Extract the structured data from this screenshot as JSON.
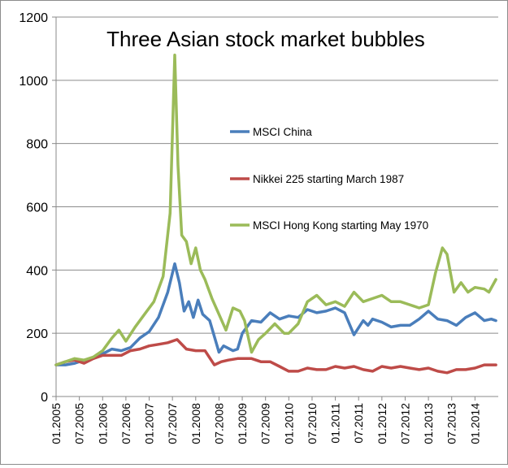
{
  "chart_data": {
    "type": "line",
    "title": "Three Asian stock market bubbles",
    "xlabel": "",
    "ylabel": "",
    "ylim": [
      0,
      1200
    ],
    "yticks": [
      "0",
      "200",
      "400",
      "600",
      "800",
      "1000",
      "1200"
    ],
    "xlim": [
      2005.0,
      2014.5
    ],
    "xticks": [
      "01.2005",
      "07.2005",
      "01.2006",
      "07.2006",
      "01.2007",
      "07.2007",
      "01.2008",
      "07.2008",
      "01.2009",
      "07.2009",
      "01.2010",
      "07.2010",
      "01.2011",
      "07.2011",
      "01.2012",
      "07.2012",
      "01.2013",
      "07.2013",
      "01.2014"
    ],
    "grid": "horizontal",
    "legend_position": "inside-right",
    "series": [
      {
        "name": "MSCI China",
        "color": "#4a7ebb",
        "x": [
          2005.0,
          2005.2,
          2005.4,
          2005.6,
          2005.8,
          2006.0,
          2006.2,
          2006.4,
          2006.6,
          2006.8,
          2007.0,
          2007.2,
          2007.4,
          2007.55,
          2007.65,
          2007.75,
          2007.85,
          2007.95,
          2008.05,
          2008.15,
          2008.3,
          2008.5,
          2008.6,
          2008.8,
          2008.9,
          2009.0,
          2009.2,
          2009.4,
          2009.6,
          2009.8,
          2010.0,
          2010.2,
          2010.4,
          2010.6,
          2010.8,
          2011.0,
          2011.2,
          2011.4,
          2011.6,
          2011.7,
          2011.8,
          2012.0,
          2012.2,
          2012.4,
          2012.6,
          2012.8,
          2013.0,
          2013.2,
          2013.4,
          2013.6,
          2013.8,
          2014.0,
          2014.2,
          2014.35,
          2014.45
        ],
        "y": [
          100,
          100,
          105,
          115,
          120,
          135,
          150,
          145,
          155,
          185,
          205,
          250,
          330,
          420,
          360,
          270,
          300,
          250,
          305,
          260,
          240,
          140,
          160,
          145,
          150,
          200,
          240,
          235,
          265,
          245,
          255,
          250,
          275,
          265,
          270,
          280,
          265,
          195,
          240,
          225,
          245,
          235,
          220,
          225,
          225,
          245,
          270,
          245,
          240,
          225,
          250,
          265,
          240,
          245,
          240
        ]
      },
      {
        "name": "Nikkei 225 starting March 1987",
        "color": "#be4b48",
        "x": [
          2005.0,
          2005.2,
          2005.4,
          2005.6,
          2005.8,
          2006.0,
          2006.2,
          2006.4,
          2006.6,
          2006.8,
          2007.0,
          2007.2,
          2007.4,
          2007.6,
          2007.8,
          2008.0,
          2008.2,
          2008.4,
          2008.55,
          2008.7,
          2008.9,
          2009.0,
          2009.2,
          2009.4,
          2009.6,
          2009.8,
          2010.0,
          2010.2,
          2010.4,
          2010.6,
          2010.8,
          2011.0,
          2011.2,
          2011.4,
          2011.6,
          2011.8,
          2012.0,
          2012.2,
          2012.4,
          2012.6,
          2012.8,
          2013.0,
          2013.2,
          2013.4,
          2013.6,
          2013.8,
          2014.0,
          2014.2,
          2014.45
        ],
        "y": [
          100,
          110,
          115,
          105,
          120,
          130,
          130,
          130,
          145,
          150,
          160,
          165,
          170,
          180,
          150,
          145,
          145,
          100,
          110,
          115,
          120,
          120,
          120,
          110,
          110,
          95,
          80,
          80,
          90,
          85,
          85,
          95,
          90,
          95,
          85,
          80,
          95,
          90,
          95,
          90,
          85,
          90,
          80,
          75,
          85,
          85,
          90,
          100,
          100
        ]
      },
      {
        "name": "MSCI Hong Kong starting May 1970",
        "color": "#9bbb59",
        "x": [
          2005.0,
          2005.2,
          2005.4,
          2005.6,
          2005.8,
          2006.0,
          2006.2,
          2006.35,
          2006.5,
          2006.7,
          2006.9,
          2007.1,
          2007.3,
          2007.45,
          2007.55,
          2007.62,
          2007.7,
          2007.8,
          2007.9,
          2008.0,
          2008.1,
          2008.2,
          2008.35,
          2008.5,
          2008.65,
          2008.8,
          2008.95,
          2009.05,
          2009.2,
          2009.35,
          2009.5,
          2009.7,
          2009.9,
          2010.0,
          2010.2,
          2010.4,
          2010.6,
          2010.8,
          2011.0,
          2011.2,
          2011.4,
          2011.6,
          2011.8,
          2012.0,
          2012.2,
          2012.4,
          2012.6,
          2012.8,
          2013.0,
          2013.15,
          2013.3,
          2013.4,
          2013.55,
          2013.7,
          2013.85,
          2014.0,
          2014.2,
          2014.3,
          2014.45
        ],
        "y": [
          100,
          110,
          120,
          115,
          125,
          145,
          185,
          210,
          175,
          220,
          260,
          300,
          380,
          580,
          1080,
          730,
          510,
          490,
          420,
          470,
          400,
          370,
          310,
          260,
          210,
          280,
          270,
          240,
          140,
          180,
          200,
          230,
          200,
          200,
          230,
          300,
          320,
          290,
          300,
          285,
          330,
          300,
          310,
          320,
          300,
          300,
          290,
          280,
          290,
          390,
          470,
          450,
          330,
          360,
          330,
          345,
          340,
          330,
          370
        ]
      }
    ]
  }
}
